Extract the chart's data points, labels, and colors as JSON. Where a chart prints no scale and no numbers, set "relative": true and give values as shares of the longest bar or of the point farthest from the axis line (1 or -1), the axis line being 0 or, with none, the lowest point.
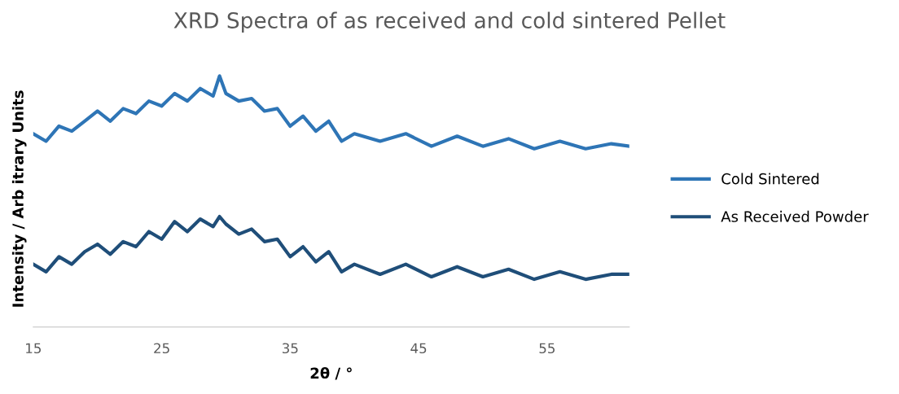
{
  "chart_data": {
    "type": "line",
    "title": "XRD Spectra of as received and cold sintered Pellet",
    "xlabel": "2θ / °",
    "ylabel": "Intensity / Arb itrary Units",
    "relative": true,
    "xlim": [
      15,
      61.4
    ],
    "xticks": [
      15,
      25,
      35,
      45,
      55
    ],
    "grid": false,
    "legend": "right",
    "marker": "none",
    "line_style": "solid",
    "series": [
      {
        "name": "Cold Sintered",
        "color": "#2e75b6",
        "x": [
          15,
          16,
          17,
          18,
          19,
          20,
          21,
          22,
          23,
          24,
          25,
          26,
          27,
          28,
          29,
          29.5,
          30,
          31,
          32,
          33,
          34,
          35,
          36,
          37,
          38,
          39,
          40,
          42,
          44,
          46,
          48,
          50,
          52,
          54,
          56,
          58,
          60,
          61.4
        ],
        "values": [
          0.77,
          0.74,
          0.8,
          0.78,
          0.82,
          0.86,
          0.82,
          0.87,
          0.85,
          0.9,
          0.88,
          0.93,
          0.9,
          0.95,
          0.92,
          1.0,
          0.93,
          0.9,
          0.91,
          0.86,
          0.87,
          0.8,
          0.84,
          0.78,
          0.82,
          0.74,
          0.77,
          0.74,
          0.77,
          0.72,
          0.76,
          0.72,
          0.75,
          0.71,
          0.74,
          0.71,
          0.73,
          0.72
        ]
      },
      {
        "name": "As Received Powder",
        "color": "#1f4e79",
        "x": [
          15,
          16,
          17,
          18,
          19,
          20,
          21,
          22,
          23,
          24,
          25,
          26,
          27,
          28,
          29,
          29.5,
          30,
          31,
          32,
          33,
          34,
          35,
          36,
          37,
          38,
          39,
          40,
          42,
          44,
          46,
          48,
          50,
          52,
          54,
          56,
          58,
          60,
          61.4
        ],
        "values": [
          0.25,
          0.22,
          0.28,
          0.25,
          0.3,
          0.33,
          0.29,
          0.34,
          0.32,
          0.38,
          0.35,
          0.42,
          0.38,
          0.43,
          0.4,
          0.44,
          0.41,
          0.37,
          0.39,
          0.34,
          0.35,
          0.28,
          0.32,
          0.26,
          0.3,
          0.22,
          0.25,
          0.21,
          0.25,
          0.2,
          0.24,
          0.2,
          0.23,
          0.19,
          0.22,
          0.19,
          0.21,
          0.21
        ]
      }
    ]
  }
}
